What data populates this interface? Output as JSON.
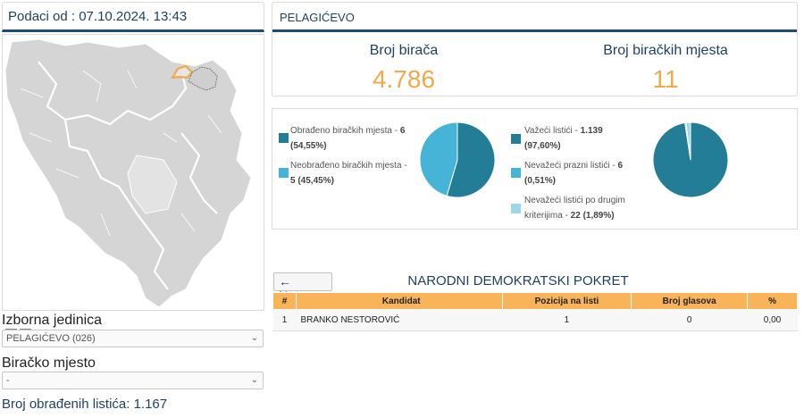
{
  "header": {
    "report_time_label": "Podaci od : 07.10.2024. 13:43"
  },
  "map": {
    "zoom_in_label": "+",
    "zoom_out_label": "-",
    "region_fill": "#d5d5d5",
    "border_color": "#ffffff",
    "highlight_color": "#f2a94a"
  },
  "filters": {
    "unit_label": "Izborna jedinica",
    "unit_value": "PELAGIĆEVO (026)",
    "station_label": "Biračko mjesto",
    "station_value": "-"
  },
  "processed_ballots": "Broj obrađenih listića: 1.167",
  "municipality": {
    "name": "PELAGIĆEVO",
    "voters_label": "Broj birača",
    "voters_value": "4.786",
    "stations_label": "Broj biračkih mjesta",
    "stations_value": "11"
  },
  "stations_stats": {
    "items": [
      {
        "text": "Obrađeno biračkih mjesta - ",
        "value": "6",
        "extra": "(54,55%)",
        "color": "#237d97"
      },
      {
        "text": "Neobrađeno biračkih mjesta - ",
        "value": "5 (45,45%)",
        "color": "#45b4d6"
      }
    ],
    "pie": [
      54.55,
      45.45
    ]
  },
  "ballots_stats": {
    "items": [
      {
        "text": "Važeći listići - ",
        "value": "1.139",
        "extra": "(97,60%)",
        "color": "#237d97"
      },
      {
        "text": "Nevažeći prazni listići - ",
        "value": "6",
        "extra": "(0,51%)",
        "color": "#45b4d6"
      },
      {
        "text": "Nevažeći listići po drugim",
        "text2": "kriterijima - ",
        "value": "22 (1,89%)",
        "color": "#9fd7ea"
      }
    ],
    "pie": [
      97.6,
      0.51,
      1.89
    ]
  },
  "results": {
    "back_label": "Natrag",
    "party_name": "NARODNI DEMOKRATSKI POKRET",
    "columns": [
      "#",
      "Kandidat",
      "Pozicija na listi",
      "Broj glasova",
      "%"
    ],
    "rows": [
      {
        "num": "1",
        "name": "BRANKO NESTOROVIĆ",
        "position": "1",
        "votes": "0",
        "pct": "0,00"
      }
    ]
  }
}
